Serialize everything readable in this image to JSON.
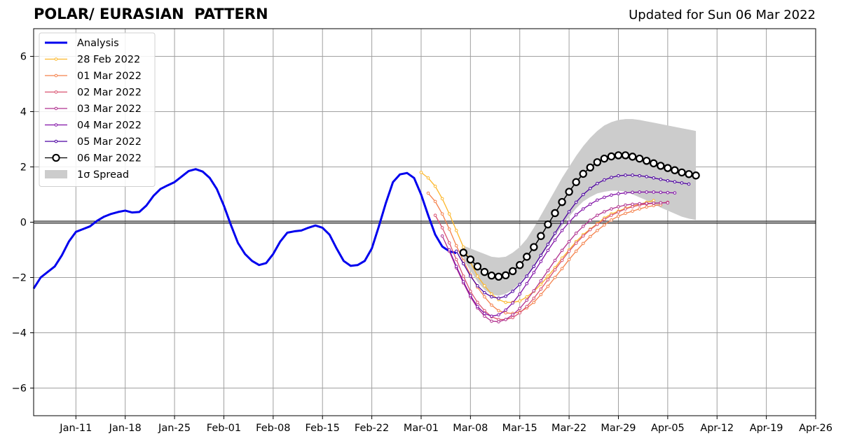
{
  "title": "POLAR/ EURASIAN  PATTERN",
  "subtitle": "Updated for Sun 06 Mar 2022",
  "chart_data": {
    "type": "line",
    "ylim": [
      -7,
      7
    ],
    "xlim": [
      0,
      111
    ],
    "yticks": [
      {
        "value": -6,
        "label": "−6"
      },
      {
        "value": -4,
        "label": "−4"
      },
      {
        "value": -2,
        "label": "−2"
      },
      {
        "value": 0,
        "label": "0"
      },
      {
        "value": 2,
        "label": "2"
      },
      {
        "value": 4,
        "label": "4"
      },
      {
        "value": 6,
        "label": "6"
      }
    ],
    "xticks": [
      {
        "value": 6,
        "label": "Jan-11"
      },
      {
        "value": 13,
        "label": "Jan-18"
      },
      {
        "value": 20,
        "label": "Jan-25"
      },
      {
        "value": 27,
        "label": "Feb-01"
      },
      {
        "value": 34,
        "label": "Feb-08"
      },
      {
        "value": 41,
        "label": "Feb-15"
      },
      {
        "value": 48,
        "label": "Feb-22"
      },
      {
        "value": 55,
        "label": "Mar-01"
      },
      {
        "value": 62,
        "label": "Mar-08"
      },
      {
        "value": 69,
        "label": "Mar-15"
      },
      {
        "value": 76,
        "label": "Mar-22"
      },
      {
        "value": 83,
        "label": "Mar-29"
      },
      {
        "value": 90,
        "label": "Apr-05"
      },
      {
        "value": 97,
        "label": "Apr-12"
      },
      {
        "value": 104,
        "label": "Apr-19"
      },
      {
        "value": 111,
        "label": "Apr-26"
      }
    ],
    "grid": true,
    "legend": "top-left",
    "colors": {
      "analysis": "#0000ee",
      "feb28": "#fcb72b",
      "mar01": "#f4804a",
      "mar02": "#d9516f",
      "mar03": "#b0308f",
      "mar04": "#8010a6",
      "mar05": "#4c01a0",
      "mar06": "#000000",
      "spread": "#cccccc"
    },
    "analysis": {
      "name": "Analysis",
      "x0": 0,
      "values": [
        -2.4,
        -2.0,
        -1.8,
        -1.6,
        -1.2,
        -0.7,
        -0.35,
        -0.25,
        -0.15,
        0.05,
        0.2,
        0.3,
        0.37,
        0.42,
        0.35,
        0.37,
        0.6,
        0.95,
        1.2,
        1.33,
        1.45,
        1.65,
        1.85,
        1.92,
        1.83,
        1.6,
        1.2,
        0.6,
        -0.1,
        -0.75,
        -1.15,
        -1.4,
        -1.55,
        -1.48,
        -1.15,
        -0.7,
        -0.38,
        -0.33,
        -0.3,
        -0.2,
        -0.12,
        -0.2,
        -0.45,
        -0.95,
        -1.4,
        -1.58,
        -1.55,
        -1.4,
        -0.95,
        -0.15,
        0.7,
        1.45,
        1.73,
        1.78,
        1.6,
        1.0,
        0.25,
        -0.45,
        -0.88,
        -1.05,
        -1.12
      ]
    },
    "forecasts": [
      {
        "name": "28 Feb 2022",
        "key": "feb28",
        "x0": 55,
        "values": [
          1.8,
          1.6,
          1.3,
          0.85,
          0.3,
          -0.3,
          -0.9,
          -1.45,
          -1.95,
          -2.3,
          -2.6,
          -2.8,
          -2.9,
          -2.9,
          -2.85,
          -2.7,
          -2.5,
          -2.25,
          -1.95,
          -1.65,
          -1.3,
          -1.0,
          -0.7,
          -0.45,
          -0.25,
          -0.05,
          0.15,
          0.3,
          0.4,
          0.5,
          0.58,
          0.65,
          0.72,
          0.78
        ]
      },
      {
        "name": "01 Mar 2022",
        "key": "mar01",
        "x0": 56,
        "values": [
          1.05,
          0.75,
          0.3,
          -0.25,
          -0.85,
          -1.4,
          -1.9,
          -2.35,
          -2.7,
          -3.0,
          -3.2,
          -3.28,
          -3.3,
          -3.25,
          -3.1,
          -2.9,
          -2.62,
          -2.32,
          -2.0,
          -1.68,
          -1.35,
          -1.05,
          -0.77,
          -0.52,
          -0.3,
          -0.1,
          0.08,
          0.22,
          0.32,
          0.4,
          0.48,
          0.55,
          0.6,
          0.63
        ]
      },
      {
        "name": "02 Mar 2022",
        "key": "mar02",
        "x0": 57,
        "values": [
          0.25,
          -0.2,
          -0.75,
          -1.35,
          -1.95,
          -2.5,
          -2.9,
          -3.2,
          -3.42,
          -3.52,
          -3.52,
          -3.45,
          -3.28,
          -3.05,
          -2.75,
          -2.42,
          -2.08,
          -1.72,
          -1.38,
          -1.05,
          -0.76,
          -0.5,
          -0.27,
          -0.08,
          0.1,
          0.25,
          0.37,
          0.48,
          0.56,
          0.62,
          0.66,
          0.68,
          0.7,
          0.72
        ]
      },
      {
        "name": "03 Mar 2022",
        "key": "mar03",
        "x0": 58,
        "values": [
          -0.5,
          -1.05,
          -1.65,
          -2.2,
          -2.7,
          -3.1,
          -3.4,
          -3.58,
          -3.6,
          -3.52,
          -3.35,
          -3.12,
          -2.82,
          -2.48,
          -2.12,
          -1.75,
          -1.38,
          -1.02,
          -0.7,
          -0.4,
          -0.15,
          0.07,
          0.25,
          0.38,
          0.48,
          0.56,
          0.62,
          0.65,
          0.67,
          0.68,
          0.69,
          0.7,
          0.7
        ]
      },
      {
        "name": "04 Mar 2022",
        "key": "mar04",
        "x0": 59,
        "values": [
          -1.0,
          -1.6,
          -2.15,
          -2.65,
          -3.05,
          -3.3,
          -3.4,
          -3.35,
          -3.18,
          -2.92,
          -2.6,
          -2.22,
          -1.82,
          -1.42,
          -1.02,
          -0.65,
          -0.3,
          0.0,
          0.27,
          0.48,
          0.65,
          0.8,
          0.9,
          0.98,
          1.03,
          1.06,
          1.08,
          1.09,
          1.09,
          1.09,
          1.08,
          1.07,
          1.06
        ]
      },
      {
        "name": "05 Mar 2022",
        "key": "mar05",
        "x0": 60,
        "values": [
          -1.05,
          -1.5,
          -1.95,
          -2.3,
          -2.55,
          -2.7,
          -2.75,
          -2.68,
          -2.5,
          -2.25,
          -1.95,
          -1.6,
          -1.2,
          -0.8,
          -0.4,
          0.0,
          0.38,
          0.72,
          1.0,
          1.22,
          1.4,
          1.53,
          1.62,
          1.68,
          1.7,
          1.7,
          1.68,
          1.65,
          1.6,
          1.55,
          1.5,
          1.46,
          1.42,
          1.38
        ]
      },
      {
        "name": "06 Mar 2022",
        "key": "mar06",
        "x0": 61,
        "values": [
          -1.1,
          -1.35,
          -1.6,
          -1.8,
          -1.93,
          -1.97,
          -1.92,
          -1.77,
          -1.55,
          -1.25,
          -0.9,
          -0.5,
          -0.08,
          0.33,
          0.73,
          1.1,
          1.45,
          1.75,
          1.98,
          2.17,
          2.3,
          2.38,
          2.42,
          2.42,
          2.37,
          2.3,
          2.22,
          2.13,
          2.04,
          1.96,
          1.88,
          1.8,
          1.74,
          1.69
        ]
      }
    ],
    "spread": {
      "name": "1σ Spread",
      "x0": 61,
      "upper": [
        -0.85,
        -0.95,
        -1.05,
        -1.15,
        -1.25,
        -1.28,
        -1.25,
        -1.1,
        -0.9,
        -0.6,
        -0.2,
        0.25,
        0.7,
        1.15,
        1.6,
        2.0,
        2.4,
        2.75,
        3.05,
        3.3,
        3.5,
        3.62,
        3.7,
        3.73,
        3.73,
        3.7,
        3.65,
        3.6,
        3.55,
        3.5,
        3.45,
        3.4,
        3.35,
        3.3
      ],
      "lower": [
        -1.35,
        -1.75,
        -2.15,
        -2.45,
        -2.61,
        -2.66,
        -2.59,
        -2.44,
        -2.2,
        -1.9,
        -1.6,
        -1.25,
        -0.86,
        -0.49,
        -0.14,
        0.2,
        0.5,
        0.75,
        0.91,
        1.04,
        1.1,
        1.14,
        1.14,
        1.11,
        1.01,
        0.9,
        0.79,
        0.66,
        0.53,
        0.42,
        0.31,
        0.2,
        0.13,
        0.08
      ]
    }
  }
}
